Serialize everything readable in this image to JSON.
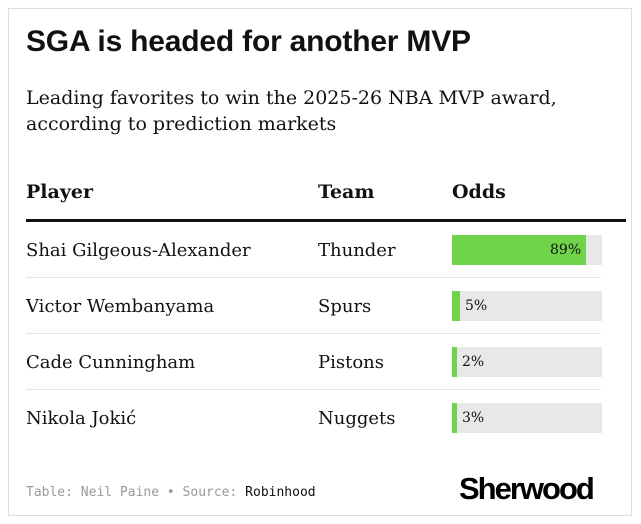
{
  "title": "SGA is headed for another MVP",
  "subtitle": "Leading favorites to win the 2025-26 NBA MVP award, according to prediction markets",
  "columns": {
    "player": "Player",
    "team": "Team",
    "odds": "Odds"
  },
  "accent_color": "#6fd44a",
  "chart_data": {
    "type": "table",
    "columns": [
      "Player",
      "Team",
      "Odds"
    ],
    "rows": [
      {
        "player": "Shai Gilgeous-Alexander",
        "team": "Thunder",
        "odds": 89,
        "odds_label": "89%"
      },
      {
        "player": "Victor Wembanyama",
        "team": "Spurs",
        "odds": 5,
        "odds_label": "5%"
      },
      {
        "player": "Cade Cunningham",
        "team": "Pistons",
        "odds": 2,
        "odds_label": "2%"
      },
      {
        "player": "Nikola Jokić",
        "team": "Nuggets",
        "odds": 3,
        "odds_label": "3%"
      }
    ],
    "odds_range": [
      0,
      100
    ]
  },
  "credit": {
    "table_label": "Table: Neil Paine",
    "separator": "•",
    "source_label": "Source:",
    "source_name": "Robinhood"
  },
  "logo": "Sherwood"
}
